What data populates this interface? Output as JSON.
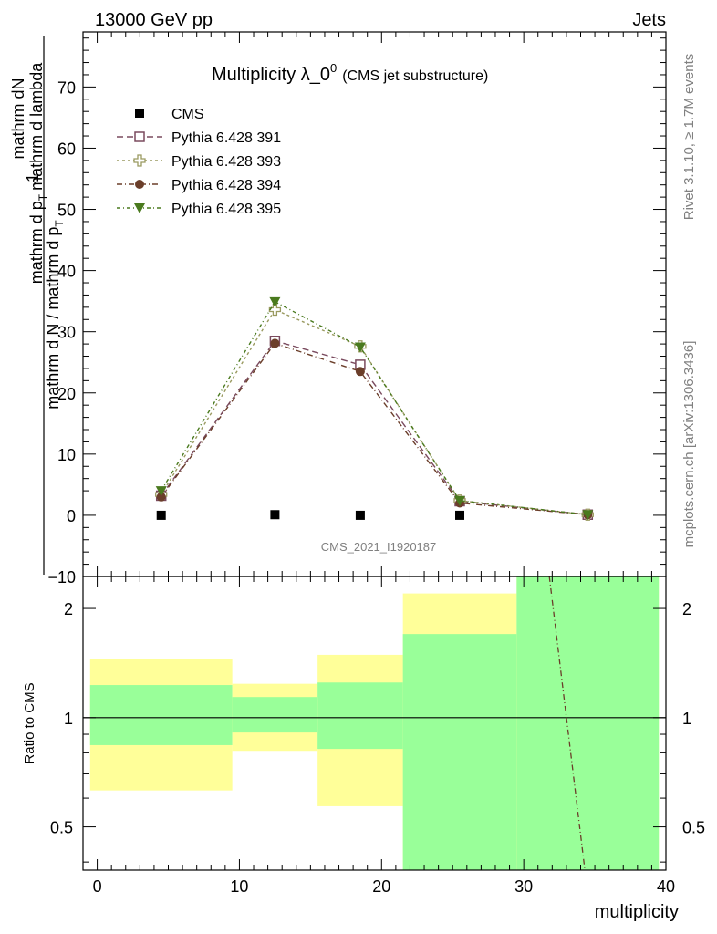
{
  "header": {
    "energy_label": "13000 GeV pp",
    "category_label": "Jets"
  },
  "side_text": {
    "rivet": "Rivet 3.1.10, ≥ 1.7M events",
    "mcplots": "mcplots.cern.ch [arXiv:1306.3436]"
  },
  "chart_data": {
    "type": "line",
    "title": "Multiplicity λ_0",
    "title_superscript": "0",
    "title_suffix": "(CMS jet substructure)",
    "analysis_tag": "CMS_2021_I1920187",
    "xlabel": "multiplicity",
    "ylabel_numerator": "mathrm dN",
    "ylabel_denominator": "mathrm d p",
    "ylabel_denominator_sub": "T",
    "ylabel_denominator_rest": "mathrm d lambda",
    "ylabel_prefix_num": "1",
    "ylabel_prefix_den": "mathrm d N / mathrm d p",
    "ylabel_prefix_den_sub": "T",
    "ratio_ylabel": "Ratio to CMS",
    "xlim": [
      -1,
      40
    ],
    "ylim": [
      -10,
      79
    ],
    "ratio_ylim": [
      0.38,
      2.45
    ],
    "ratio_log": true,
    "x_ticks": [
      "0",
      "10",
      "20",
      "30",
      "40"
    ],
    "y_ticks": [
      "−10",
      "0",
      "10",
      "20",
      "30",
      "40",
      "50",
      "60",
      "70"
    ],
    "ratio_ticks": [
      "0.5",
      "1",
      "2"
    ],
    "legend_position": "top-left",
    "series": [
      {
        "name": "CMS",
        "marker": "square-filled",
        "color": "#000000",
        "x": [
          4.5,
          12.5,
          18.5,
          25.5,
          34.5
        ],
        "y": [
          0.0,
          0.1,
          0.0,
          0.0,
          0.0
        ]
      },
      {
        "name": "Pythia 6.428 391",
        "marker": "square-open",
        "color": "#7a4a5e",
        "x": [
          4.5,
          12.5,
          18.5,
          25.5,
          34.5
        ],
        "y": [
          3.2,
          28.5,
          24.6,
          2.3,
          0.1
        ]
      },
      {
        "name": "Pythia 6.428 393",
        "marker": "cross-open",
        "color": "#9a9a60",
        "x": [
          4.5,
          12.5,
          18.5,
          25.5,
          34.5
        ],
        "y": [
          3.4,
          33.6,
          27.6,
          2.4,
          0.1
        ]
      },
      {
        "name": "Pythia 6.428 394",
        "marker": "circle-filled",
        "color": "#6b3e2a",
        "x": [
          4.5,
          12.5,
          18.5,
          25.5,
          34.5
        ],
        "y": [
          3.0,
          28.1,
          23.5,
          2.0,
          0.1
        ]
      },
      {
        "name": "Pythia 6.428 395",
        "marker": "triangle-down-filled",
        "color": "#4a7a1e",
        "x": [
          4.5,
          12.5,
          18.5,
          25.5,
          34.5
        ],
        "y": [
          4.0,
          34.9,
          27.5,
          2.4,
          0.1
        ]
      }
    ],
    "uncertainty_bands": [
      {
        "x0": -0.5,
        "x1": 9.5,
        "yellow": [
          0.63,
          1.45
        ],
        "green": [
          0.84,
          1.23
        ]
      },
      {
        "x0": 9.5,
        "x1": 15.5,
        "yellow": [
          0.81,
          1.24
        ],
        "green": [
          0.91,
          1.14
        ]
      },
      {
        "x0": 15.5,
        "x1": 21.5,
        "yellow": [
          0.57,
          1.49
        ],
        "green": [
          0.82,
          1.25
        ]
      },
      {
        "x0": 21.5,
        "x1": 29.5,
        "yellow": [
          0.38,
          2.2
        ],
        "green": [
          0.38,
          1.7
        ]
      },
      {
        "x0": 29.5,
        "x1": 39.5,
        "yellow": [
          0.38,
          2.45
        ],
        "green": [
          0.38,
          2.45
        ]
      }
    ],
    "ratio_line": {
      "color": "#6b3e2a",
      "points": [
        [
          31.8,
          2.45
        ],
        [
          34.3,
          0.38
        ]
      ]
    }
  }
}
